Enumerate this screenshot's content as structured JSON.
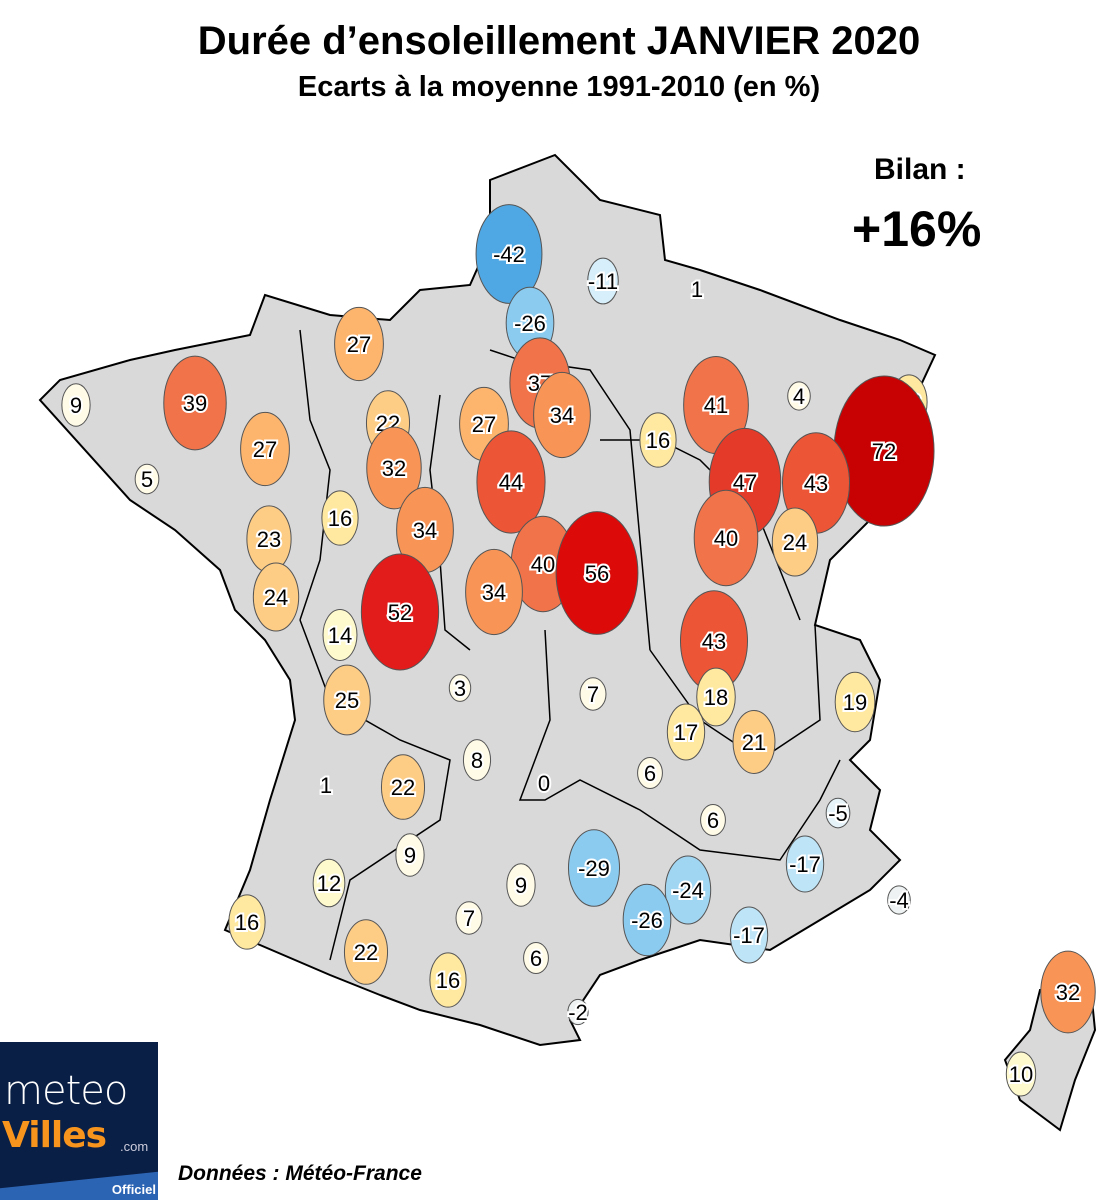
{
  "header": {
    "title": "Durée d’ensoleillement JANVIER 2020",
    "subtitle": "Ecarts à la moyenne 1991-2010 (en %)"
  },
  "summary": {
    "label": "Bilan :",
    "value": "+16%"
  },
  "map": {
    "region": "France",
    "land_color": "#d9d9d9",
    "station_values": [
      -42,
      -11,
      1,
      -26,
      27,
      37,
      39,
      9,
      22,
      27,
      34,
      41,
      4,
      16,
      16,
      72,
      27,
      32,
      44,
      47,
      43,
      5,
      16,
      34,
      23,
      40,
      56,
      40,
      24,
      24,
      52,
      34,
      14,
      43,
      25,
      3,
      7,
      18,
      19,
      17,
      21,
      8,
      1,
      22,
      0,
      6,
      6,
      -5,
      9,
      -29,
      -17,
      12,
      9,
      -24,
      -26,
      16,
      7,
      -17,
      -4,
      22,
      6,
      16,
      -2,
      32,
      10
    ],
    "color_scale": {
      "negative_strong": "#4fa8e3",
      "negative_mid": "#8ccbf0",
      "negative_light": "#bde4f7",
      "near_zero": "#fffbe6",
      "positive_light": "#ffe8a0",
      "positive_mid": "#fdb56e",
      "positive_strong": "#ec5536",
      "positive_max": "#c80202"
    }
  },
  "footer": {
    "source": "Données : Météo-France",
    "logo": {
      "line1": "meteo",
      "line2": "Villes",
      "suffix": ".com",
      "tag": "Officiel"
    }
  }
}
